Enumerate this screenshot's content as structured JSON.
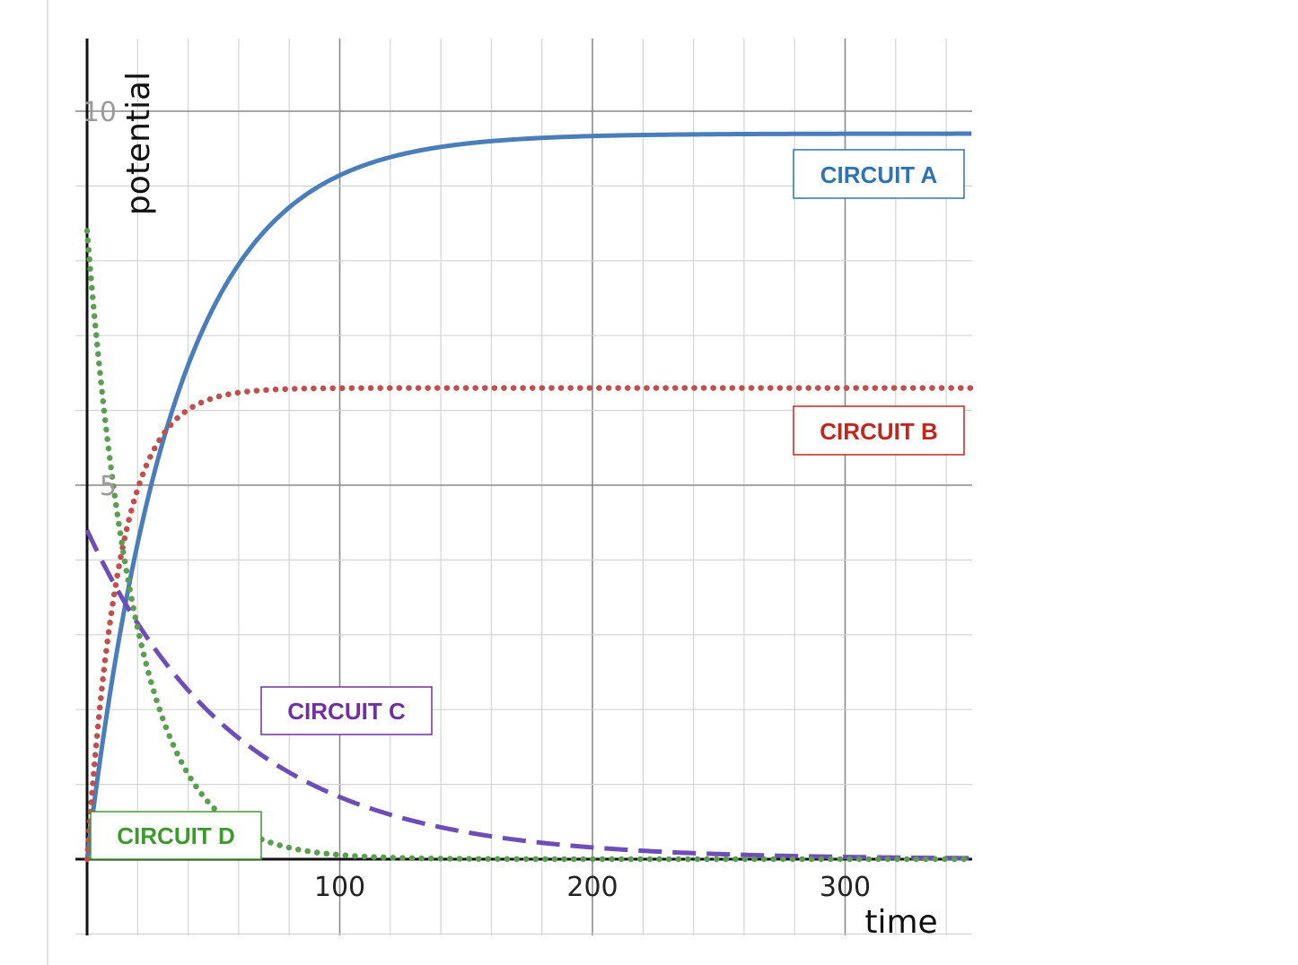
{
  "chart_data": {
    "type": "line",
    "xlabel": "time",
    "ylabel": "potential",
    "xlim": [
      0,
      350
    ],
    "ylim": [
      -1,
      11
    ],
    "x_ticks": [
      {
        "value": 100,
        "label": "100"
      },
      {
        "value": 200,
        "label": "200"
      },
      {
        "value": 300,
        "label": "300"
      }
    ],
    "y_ticks": [
      {
        "value": 5,
        "label": "5"
      },
      {
        "value": 10,
        "label": "10"
      }
    ],
    "grid": true,
    "minor_grid_step_x": 20,
    "minor_grid_step_y": 1,
    "series": [
      {
        "name": "CIRCUIT A",
        "style": "solid",
        "color": "#4a7ebb",
        "model": "rise",
        "amplitude": 9.7,
        "tau": 35
      },
      {
        "name": "CIRCUIT B",
        "style": "dotted",
        "color": "#c0504d",
        "model": "rise",
        "amplitude": 6.3,
        "tau": 13
      },
      {
        "name": "CIRCUIT C",
        "style": "dashed",
        "color": "#6f4db8",
        "model": "decay",
        "amplitude": 4.4,
        "tau": 60
      },
      {
        "name": "CIRCUIT D",
        "style": "dotted",
        "color": "#5a9e4f",
        "model": "decay",
        "amplitude": 8.4,
        "tau": 20
      }
    ],
    "legend": [
      {
        "label": "CIRCUIT A",
        "color": "#2e74b5",
        "position": "top-right"
      },
      {
        "label": "CIRCUIT B",
        "color": "#c0281e",
        "position": "center-right"
      },
      {
        "label": "CIRCUIT C",
        "color": "#7030a0",
        "position": "lower-center"
      },
      {
        "label": "CIRCUIT D",
        "color": "#3d9b2b",
        "position": "bottom-left"
      }
    ]
  }
}
